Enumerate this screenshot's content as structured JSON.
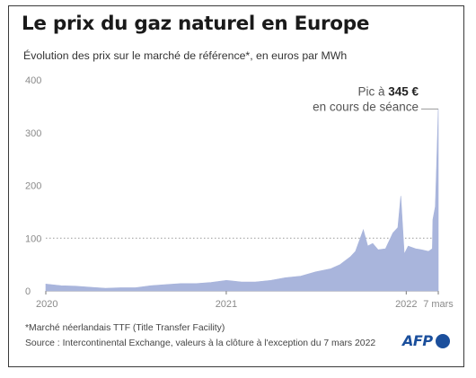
{
  "header": {
    "title": "Le prix du gaz naturel en Europe",
    "subtitle": "Évolution des prix sur le marché de référence*, en euros par MWh"
  },
  "chart_data": {
    "type": "area",
    "title": "Le prix du gaz naturel en Europe",
    "subtitle": "Évolution des prix sur le marché de référence*, en euros par MWh",
    "xlabel": "",
    "ylabel": "",
    "ylim": [
      0,
      400
    ],
    "y_ticks": [
      0,
      100,
      200,
      300,
      400
    ],
    "y_tick_labels": [
      "0",
      "100",
      "200",
      "300",
      "400"
    ],
    "reference_line": 100,
    "grid": false,
    "x_tick_labels": [
      "2020",
      "2021",
      "2022",
      "7 mars"
    ],
    "x_tick_positions": [
      "2020-01-01",
      "2021-01-01",
      "2022-01-01",
      "2022-03-07"
    ],
    "color": "#a9b5dc",
    "series": [
      {
        "x": [
          "2020-01-01",
          "2020-02-01",
          "2020-03-01",
          "2020-04-01",
          "2020-05-01",
          "2020-06-01",
          "2020-07-01",
          "2020-08-01",
          "2020-09-01",
          "2020-10-01",
          "2020-11-01",
          "2020-12-01",
          "2021-01-01",
          "2021-02-01",
          "2021-03-01",
          "2021-04-01",
          "2021-05-01",
          "2021-06-01",
          "2021-07-01",
          "2021-08-01",
          "2021-08-20",
          "2021-09-10",
          "2021-09-20",
          "2021-10-06",
          "2021-10-15",
          "2021-10-25",
          "2021-11-05",
          "2021-11-20",
          "2021-12-05",
          "2021-12-15",
          "2021-12-21",
          "2021-12-28",
          "2022-01-05",
          "2022-01-20",
          "2022-02-01",
          "2022-02-15",
          "2022-02-23",
          "2022-02-24",
          "2022-03-01",
          "2022-03-04",
          "2022-03-07"
        ],
        "y": [
          13,
          10,
          9,
          7,
          5,
          6,
          6,
          10,
          12,
          14,
          14,
          16,
          20,
          17,
          17,
          20,
          25,
          28,
          36,
          42,
          50,
          65,
          75,
          116,
          85,
          90,
          78,
          80,
          110,
          120,
          180,
          70,
          85,
          80,
          78,
          75,
          80,
          135,
          160,
          250,
          345
        ]
      }
    ],
    "annotations": [
      {
        "text_prefix": "Pic à ",
        "text_value": "345 €",
        "text_line2": "en cours de séance",
        "x": "2022-03-07",
        "y": 345
      }
    ]
  },
  "footer": {
    "footnote": "*Marché néerlandais TTF (Title Transfer Facility)",
    "source": "Source : Intercontinental Exchange, valeurs à la clôture à l'exception du 7 mars 2022",
    "logo_text": "AFP"
  },
  "colors": {
    "area": "#a9b5dc",
    "reference_line": "#9a9a9a",
    "logo": "#1b4f9c"
  }
}
